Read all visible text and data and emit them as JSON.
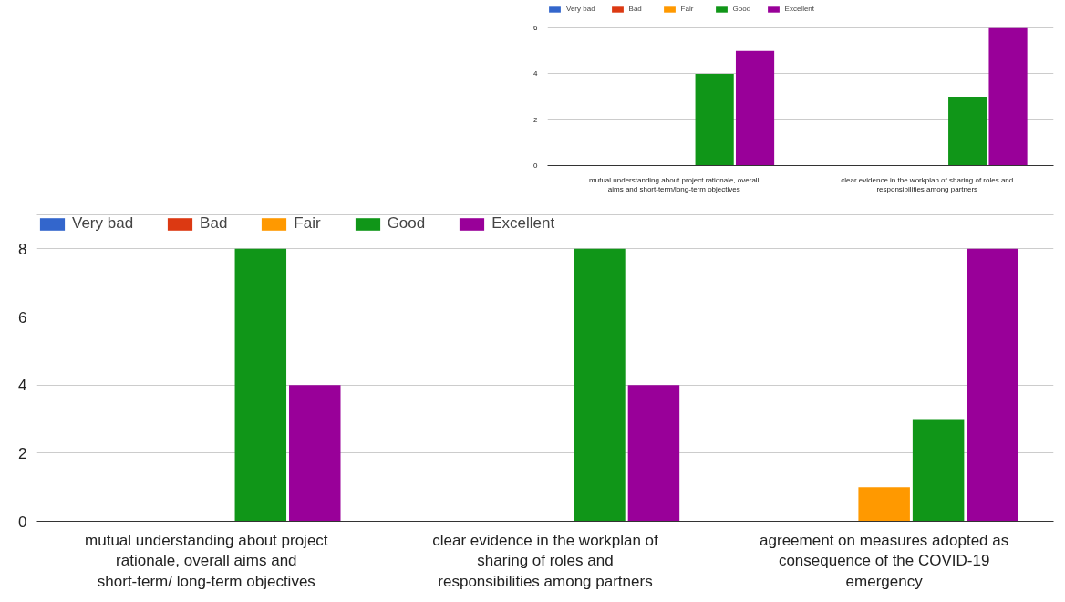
{
  "chart_data": [
    {
      "type": "bar",
      "categories": [
        "mutual understanding about project rationale, overall aims and short-term/long-term objectives",
        "clear evidence in the workplan of sharing of roles and responsibilities among partners"
      ],
      "series": [
        {
          "name": "Very bad",
          "color": "#3366cc",
          "values": [
            0,
            0
          ]
        },
        {
          "name": "Bad",
          "color": "#dc3912",
          "values": [
            0,
            0
          ]
        },
        {
          "name": "Fair",
          "color": "#ff9900",
          "values": [
            0,
            0
          ]
        },
        {
          "name": "Good",
          "color": "#109618",
          "values": [
            4,
            3
          ]
        },
        {
          "name": "Excellent",
          "color": "#990099",
          "values": [
            5,
            6
          ]
        }
      ],
      "ylim": [
        0,
        7
      ],
      "yticks": [
        0,
        2,
        4,
        6
      ],
      "grid": "y",
      "legend": "top"
    },
    {
      "type": "bar",
      "categories": [
        "mutual understanding about project rationale, overall aims and short-term/ long-term objectives",
        "clear evidence in the workplan of sharing of roles and responsibilities among partners",
        "agreement on measures adopted as consequence of the COVID-19 emergency"
      ],
      "series": [
        {
          "name": "Very bad",
          "color": "#3366cc",
          "values": [
            0,
            0,
            0
          ]
        },
        {
          "name": "Bad",
          "color": "#dc3912",
          "values": [
            0,
            0,
            0
          ]
        },
        {
          "name": "Fair",
          "color": "#ff9900",
          "values": [
            0,
            0,
            1
          ]
        },
        {
          "name": "Good",
          "color": "#109618",
          "values": [
            8,
            8,
            3
          ]
        },
        {
          "name": "Excellent",
          "color": "#990099",
          "values": [
            4,
            4,
            8
          ]
        }
      ],
      "ylim": [
        0,
        9
      ],
      "yticks": [
        0,
        2,
        4,
        6,
        8
      ],
      "grid": "y",
      "legend": "top"
    }
  ]
}
